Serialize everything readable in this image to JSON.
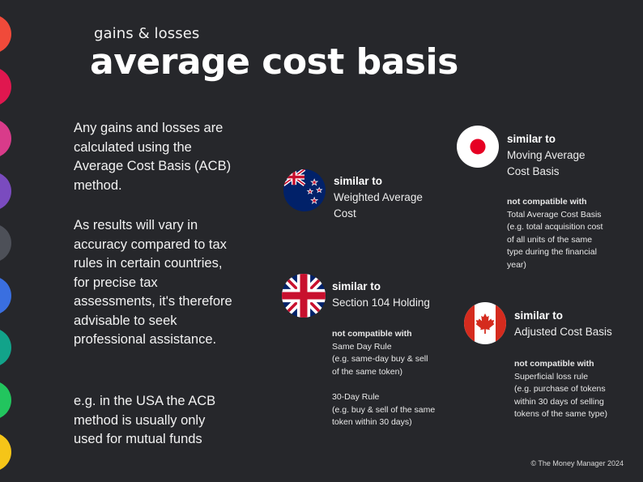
{
  "subtitle": "gains & losses",
  "title": "average cost basis",
  "intro": {
    "p1": "Any gains and losses are calculated using the Average Cost Basis (ACB) method.",
    "p2": "As results will vary in accuracy compared to tax rules in certain countries, for precise tax assessments, it's therefore advisable to seek professional assistance.",
    "p3": "e.g. in the USA the ACB method is usually only used for mutual funds"
  },
  "side_dots": [
    "#f04a3a",
    "#e0174f",
    "#d93b8a",
    "#7a4bbf",
    "#4d5058",
    "#3a6fe0",
    "#12a38a",
    "#22c55e",
    "#f5c518"
  ],
  "countries": {
    "nz": {
      "flag_icon": "new-zealand-flag-icon",
      "similar_label": "similar to",
      "similar_value": "Weighted Average\nCost"
    },
    "uk": {
      "flag_icon": "united-kingdom-flag-icon",
      "similar_label": "similar to",
      "similar_value": "Section 104 Holding",
      "not_compatible_label": "not compatible with",
      "rule1_name": "Same Day Rule",
      "rule1_example": "(e.g. same-day buy & sell\nof the same token)",
      "rule2_name": "30-Day Rule",
      "rule2_example": "(e.g. buy & sell of the same\ntoken within 30 days)"
    },
    "jp": {
      "flag_icon": "japan-flag-icon",
      "similar_label": "similar to",
      "similar_value": "Moving Average\nCost Basis",
      "not_compatible_label": "not compatible with",
      "rule1_name": "Total Average Cost Basis",
      "rule1_example": "(e.g. total acquisition cost\nof all units of the same\ntype during the financial\nyear)"
    },
    "ca": {
      "flag_icon": "canada-flag-icon",
      "similar_label": "similar to",
      "similar_value": "Adjusted Cost Basis",
      "not_compatible_label": "not compatible with",
      "rule1_name": "Superficial loss rule",
      "rule1_example": "(e.g. purchase of tokens\nwithin 30 days of selling\ntokens of the same type)"
    }
  },
  "copyright": "© The Money Manager 2024"
}
